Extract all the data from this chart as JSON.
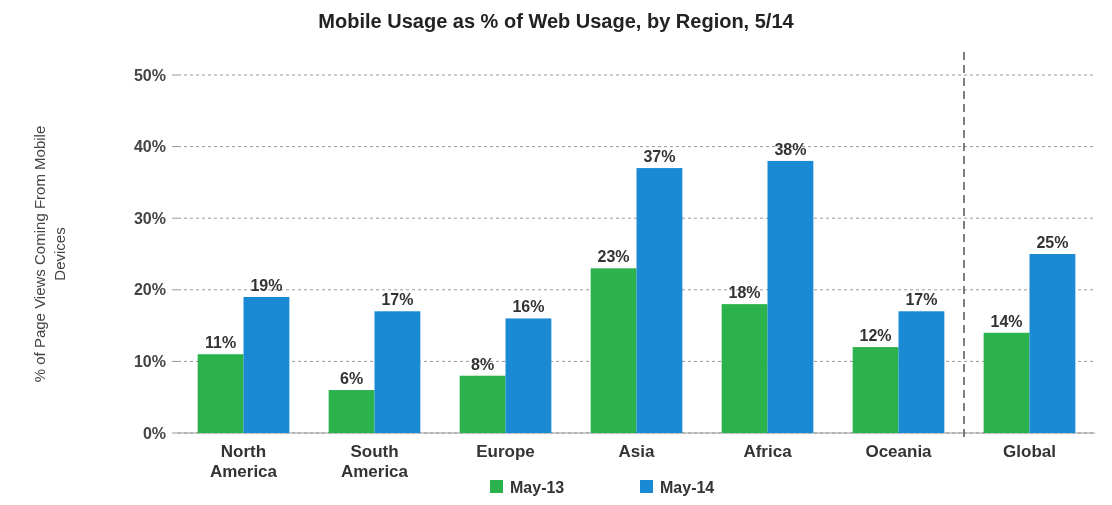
{
  "chart_data": {
    "type": "bar",
    "title": "Mobile Usage as % of Web Usage, by Region, 5/14",
    "ylabel": "% of Page Views Coming From Mobile Devices",
    "categories": [
      "North America",
      "South America",
      "Europe",
      "Asia",
      "Africa",
      "Oceania",
      "Global"
    ],
    "series": [
      {
        "name": "May-13",
        "color": "#2bb24c",
        "values": [
          11,
          6,
          8,
          23,
          18,
          12,
          14
        ],
        "value_labels": [
          "11%",
          "6%",
          "8%",
          "23%",
          "18%",
          "12%",
          "14%"
        ]
      },
      {
        "name": "May-14",
        "color": "#1a8ad4",
        "values": [
          19,
          17,
          16,
          37,
          38,
          17,
          25
        ],
        "value_labels": [
          "19%",
          "17%",
          "16%",
          "37%",
          "38%",
          "17%",
          "25%"
        ]
      }
    ],
    "ylim": [
      0,
      50
    ],
    "yticks": [
      {
        "value": 0,
        "label": "0%"
      },
      {
        "value": 10,
        "label": "10%"
      },
      {
        "value": 20,
        "label": "20%"
      },
      {
        "value": 30,
        "label": "30%"
      },
      {
        "value": 40,
        "label": "40%"
      },
      {
        "value": 50,
        "label": "50%"
      }
    ],
    "grid": "y",
    "legend": "bottom"
  }
}
